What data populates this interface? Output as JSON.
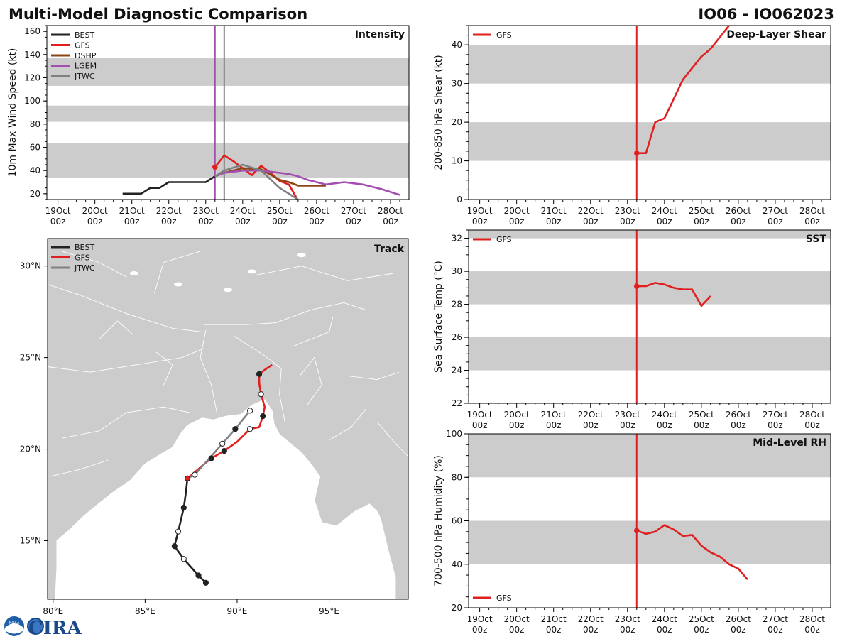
{
  "header": {
    "title": "Multi-Model Diagnostic Comparison",
    "storm_id": "IO06 - IO062023"
  },
  "logo": {
    "text": "CIRA",
    "seal_text": "NOAA"
  },
  "colors": {
    "BEST": "#222222",
    "GFS": "#e02020",
    "DSHP": "#8b4513",
    "LGEM": "#a24fb0",
    "JTWC": "#808080",
    "band": "#cccccc",
    "land": "#cccccc",
    "border": "#ffffff"
  },
  "time_axis": {
    "range": [
      18.7,
      28.5
    ],
    "ticks": [
      {
        "day": 19,
        "top": "19Oct",
        "bottom": "00z"
      },
      {
        "day": 20,
        "top": "20Oct",
        "bottom": "00z"
      },
      {
        "day": 21,
        "top": "21Oct",
        "bottom": "00z"
      },
      {
        "day": 22,
        "top": "22Oct",
        "bottom": "00z"
      },
      {
        "day": 23,
        "top": "23Oct",
        "bottom": "00z"
      },
      {
        "day": 24,
        "top": "24Oct",
        "bottom": "00z"
      },
      {
        "day": 25,
        "top": "25Oct",
        "bottom": "00z"
      },
      {
        "day": 26,
        "top": "26Oct",
        "bottom": "00z"
      },
      {
        "day": 27,
        "top": "27Oct",
        "bottom": "00z"
      },
      {
        "day": 28,
        "top": "28Oct",
        "bottom": "00z"
      }
    ]
  },
  "chart_data": [
    {
      "id": "intensity",
      "type": "line",
      "title": "Intensity",
      "ylabel": "10m Max Wind Speed (kt)",
      "ylim": [
        15,
        165
      ],
      "yticks": [
        20,
        40,
        60,
        80,
        100,
        120,
        140,
        160
      ],
      "bands": [
        [
          34,
          64
        ],
        [
          82,
          96
        ],
        [
          113,
          137
        ]
      ],
      "vlines": [
        {
          "x": 23.25,
          "series": "LGEM"
        },
        {
          "x": 23.5,
          "series": "JTWC"
        }
      ],
      "legend": [
        "BEST",
        "GFS",
        "DSHP",
        "LGEM",
        "JTWC"
      ],
      "series": [
        {
          "name": "BEST",
          "x": [
            20.75,
            21.25,
            21.5,
            21.75,
            22.0,
            22.25,
            22.5,
            22.75,
            23.0,
            23.25
          ],
          "y": [
            20,
            20,
            25,
            25,
            30,
            30,
            30,
            30,
            30,
            35
          ]
        },
        {
          "name": "GFS",
          "x": [
            23.25,
            23.5,
            23.75,
            24.0,
            24.25,
            24.5,
            24.75,
            25.0,
            25.25,
            25.5
          ],
          "y": [
            43,
            53,
            48,
            42,
            36,
            44,
            38,
            31,
            28,
            14
          ],
          "start_marker": true
        },
        {
          "name": "DSHP",
          "x": [
            23.25,
            23.5,
            24.0,
            24.5,
            25.0,
            25.25,
            25.5,
            26.25
          ],
          "y": [
            35,
            38,
            42,
            41,
            32,
            30,
            27,
            27
          ]
        },
        {
          "name": "LGEM",
          "x": [
            23.25,
            23.5,
            24.0,
            24.5,
            25.0,
            25.25,
            25.5,
            25.75,
            26.0,
            26.25,
            26.75,
            27.25,
            27.75,
            28.25
          ],
          "y": [
            35,
            38,
            40,
            40,
            38,
            37,
            35,
            32,
            30,
            28,
            30,
            28,
            24,
            19
          ]
        },
        {
          "name": "JTWC",
          "x": [
            23.25,
            23.5,
            24.0,
            24.5,
            25.0,
            25.5
          ],
          "y": [
            35,
            40,
            45,
            40,
            25,
            15
          ]
        }
      ]
    },
    {
      "id": "shear",
      "type": "line",
      "title": "Deep-Layer Shear",
      "ylabel": "200-850 hPa Shear (kt)",
      "ylim": [
        0,
        45
      ],
      "yticks": [
        0,
        10,
        20,
        30,
        40
      ],
      "bands": [
        [
          10,
          20
        ],
        [
          30,
          40
        ]
      ],
      "vlines": [
        {
          "x": 23.25,
          "series": "GFS"
        }
      ],
      "legend": [
        "GFS"
      ],
      "series": [
        {
          "name": "GFS",
          "x": [
            23.25,
            23.5,
            23.75,
            24.0,
            24.5,
            25.0,
            25.25,
            25.75
          ],
          "y": [
            12,
            12,
            20,
            21,
            31,
            37,
            39,
            45
          ],
          "start_marker": true
        }
      ]
    },
    {
      "id": "sst",
      "type": "line",
      "title": "SST",
      "ylabel": "Sea Surface Temp (°C)",
      "ylim": [
        22,
        32.5
      ],
      "yticks": [
        22,
        24,
        26,
        28,
        30,
        32
      ],
      "bands": [
        [
          24,
          26
        ],
        [
          28,
          30
        ],
        [
          32,
          34
        ]
      ],
      "vlines": [
        {
          "x": 23.25,
          "series": "GFS"
        }
      ],
      "legend": [
        "GFS"
      ],
      "series": [
        {
          "name": "GFS",
          "x": [
            23.25,
            23.5,
            23.75,
            24.0,
            24.25,
            24.5,
            24.75,
            25.0,
            25.25
          ],
          "y": [
            29.1,
            29.1,
            29.3,
            29.2,
            29.0,
            28.9,
            28.9,
            27.9,
            28.5
          ],
          "start_marker": true
        }
      ]
    },
    {
      "id": "rh",
      "type": "line",
      "title": "Mid-Level RH",
      "ylabel": "700-500 hPa Humidity (%)",
      "ylim": [
        20,
        100
      ],
      "yticks": [
        20,
        40,
        60,
        80,
        100
      ],
      "bands": [
        [
          40,
          60
        ],
        [
          80,
          100
        ]
      ],
      "vlines": [
        {
          "x": 23.25,
          "series": "GFS"
        }
      ],
      "legend": [
        "GFS"
      ],
      "series": [
        {
          "name": "GFS",
          "x": [
            23.25,
            23.5,
            23.75,
            24.0,
            24.25,
            24.5,
            24.75,
            25.0,
            25.25,
            25.5,
            25.75,
            26.0,
            26.25
          ],
          "y": [
            55.5,
            54,
            55,
            58,
            56,
            53,
            53.5,
            48.5,
            45.5,
            43.5,
            40,
            38,
            33
          ],
          "start_marker": true
        }
      ]
    },
    {
      "id": "track",
      "type": "scatter",
      "title": "Track",
      "xlim": [
        79.7,
        99.3
      ],
      "ylim": [
        11.8,
        31.5
      ],
      "xticks": [
        {
          "v": 80,
          "label": "80°E"
        },
        {
          "v": 85,
          "label": "85°E"
        },
        {
          "v": 90,
          "label": "90°E"
        },
        {
          "v": 95,
          "label": "95°E"
        }
      ],
      "yticks": [
        {
          "v": 15,
          "label": "15°N"
        },
        {
          "v": 20,
          "label": "20°N"
        },
        {
          "v": 25,
          "label": "25°N"
        },
        {
          "v": 30,
          "label": "30°N"
        }
      ],
      "legend": [
        "BEST",
        "GFS",
        "JTWC"
      ],
      "series": [
        {
          "name": "BEST",
          "lon": [
            88.3,
            87.9,
            87.1,
            86.6,
            86.8,
            87.1,
            87.2,
            87.3
          ],
          "lat": [
            12.7,
            13.1,
            14.0,
            14.7,
            15.5,
            16.8,
            17.5,
            18.4
          ],
          "markers": [
            "filled",
            "filled",
            "open",
            "filled",
            "open",
            "filled",
            "none",
            "filled"
          ]
        },
        {
          "name": "GFS",
          "lon": [
            87.3,
            88.0,
            88.6,
            89.3,
            90.0,
            90.7,
            91.2,
            91.4,
            91.5,
            91.3,
            91.2,
            91.2,
            91.6,
            91.9
          ],
          "lat": [
            18.4,
            19.0,
            19.5,
            19.9,
            20.4,
            21.1,
            21.2,
            21.8,
            22.3,
            23.0,
            23.6,
            24.1,
            24.4,
            24.6
          ],
          "markers": [
            "filled",
            "none",
            "filled",
            "filled",
            "none",
            "open",
            "none",
            "filled",
            "none",
            "open",
            "none",
            "filled",
            "none",
            "none"
          ]
        },
        {
          "name": "JTWC",
          "lon": [
            87.3,
            87.7,
            88.5,
            89.2,
            89.9,
            90.7
          ],
          "lat": [
            18.4,
            18.6,
            19.5,
            20.3,
            21.1,
            22.1
          ],
          "markers": [
            "none",
            "open",
            "none",
            "open",
            "filled",
            "open"
          ]
        }
      ]
    }
  ]
}
